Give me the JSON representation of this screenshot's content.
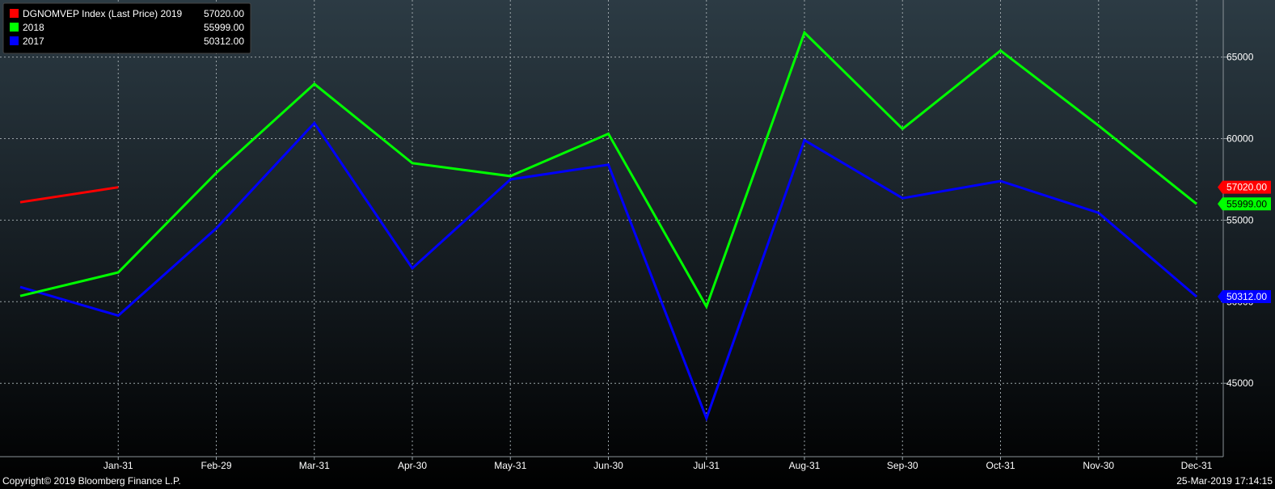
{
  "chart_data": {
    "type": "line",
    "categories": [
      "Jan-31",
      "Feb-29",
      "Mar-31",
      "Apr-30",
      "May-31",
      "Jun-30",
      "Jul-31",
      "Aug-31",
      "Sep-30",
      "Oct-31",
      "Nov-30",
      "Dec-31"
    ],
    "series": [
      {
        "name": "DGNOMVEP Index (Last Price) 2019",
        "legend_value": "57020.00",
        "last_tag": "57020.00",
        "color": "#ff0000",
        "x": [
          0,
          1
        ],
        "values": [
          56100,
          57020
        ]
      },
      {
        "name": "2018",
        "legend_value": "55999.00",
        "last_tag": "55999.00",
        "color": "#00ff00",
        "x": [
          0,
          1,
          2,
          3,
          4,
          5,
          6,
          7,
          8,
          9,
          10,
          11,
          12
        ],
        "values": [
          50350,
          51800,
          57900,
          63350,
          58500,
          57700,
          60300,
          49700,
          66500,
          60600,
          65400,
          60800,
          55999
        ]
      },
      {
        "name": "2017",
        "legend_value": "50312.00",
        "last_tag": "50312.00",
        "color": "#0000ff",
        "x": [
          0,
          1,
          2,
          3,
          4,
          5,
          6,
          7,
          8,
          9,
          10,
          11,
          12
        ],
        "values": [
          50900,
          49150,
          54500,
          60950,
          52050,
          57500,
          58400,
          42850,
          59900,
          56350,
          57400,
          55450,
          50312
        ]
      }
    ],
    "y_ticks": [
      "45000",
      "50000",
      "55000",
      "60000",
      "65000"
    ],
    "y_tick_values": [
      45000,
      50000,
      55000,
      60000,
      65000
    ],
    "ylim": [
      40500,
      68500
    ],
    "xlim": [
      0,
      12
    ],
    "grid": true,
    "legend_placement": "top-left"
  },
  "footer": {
    "copyright": "Copyright© 2019 Bloomberg Finance L.P.",
    "timestamp": "25-Mar-2019 17:14:15"
  }
}
